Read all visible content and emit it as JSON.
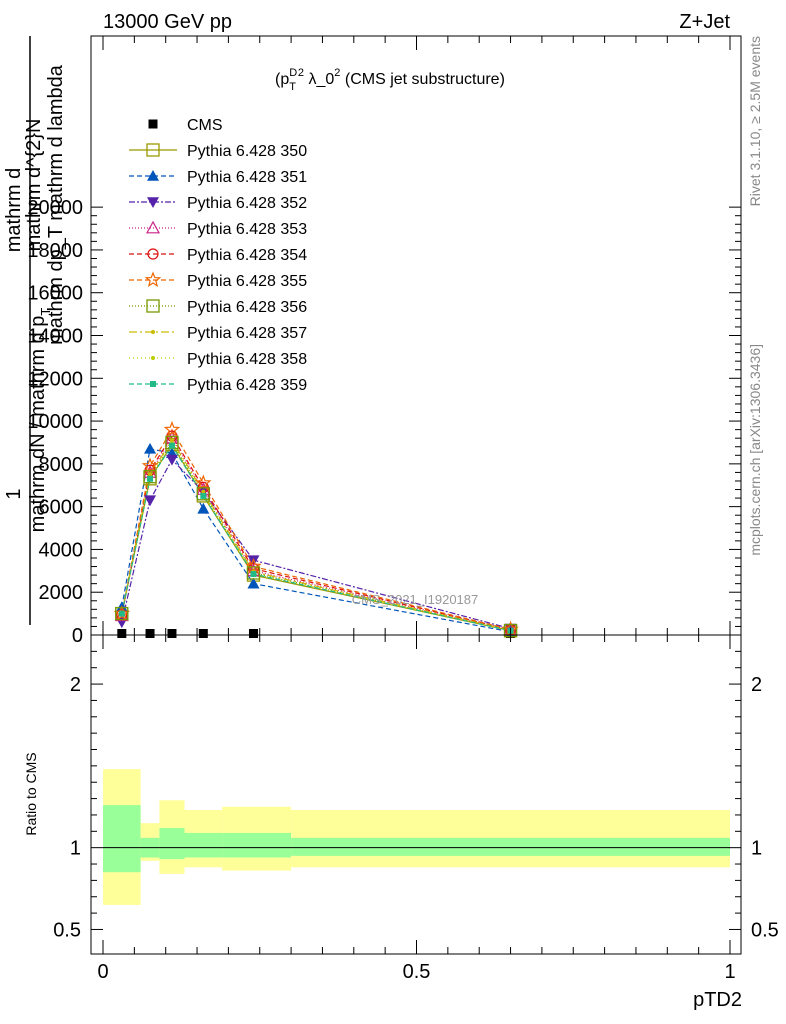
{
  "header": {
    "left": "13000 GeV pp",
    "right": "Z+Jet"
  },
  "side_labels": {
    "rivet": "Rivet 3.1.10, ≥ 2.5M events",
    "mcplots": "mcplots.cern.ch [arXiv:1306.3436]"
  },
  "watermark": "CMS_2021_I1920187",
  "chart_data": [
    {
      "type": "line",
      "title_main": "(p",
      "title_sup1": "D",
      "title_sub1": "T",
      "title_sup2": "2",
      "title_rest": " λ_0",
      "title_sup3": "2",
      "title_tail": " (CMS jet substructure)",
      "ylabel": {
        "line1": "1",
        "line2": "mathrm dN / mathrm d p",
        "line2_sub": "T",
        "line3": "mathrm d",
        "line4": "mathrm d^{2}N",
        "line5": "mathrm dp_T mathrm d lambda"
      },
      "ylim": [
        0,
        28000
      ],
      "yticks": [
        0,
        2000,
        4000,
        6000,
        8000,
        10000,
        12000,
        14000,
        16000,
        18000,
        20000
      ],
      "ytick_labels": [
        "0",
        "2000",
        "4000",
        "6000",
        "8000",
        "10000",
        "12000",
        "14000",
        "16000",
        "18000",
        "20000"
      ],
      "xlim": [
        0,
        1
      ],
      "x": [
        0.03,
        0.075,
        0.11,
        0.16,
        0.24,
        0.65
      ],
      "series": [
        {
          "name": "CMS",
          "color": "#000000",
          "marker": "square-filled",
          "dash": "none",
          "values": [
            0,
            0,
            0,
            0,
            0,
            0
          ]
        },
        {
          "name": "Pythia 6.428 350",
          "color": "#999900",
          "marker": "square-open",
          "dash": "solid",
          "values": [
            1000,
            7300,
            8900,
            6500,
            2800,
            200
          ]
        },
        {
          "name": "Pythia 6.428 351",
          "color": "#0055bb",
          "marker": "triangle-up",
          "dash": "5,3",
          "values": [
            1300,
            8700,
            8500,
            5900,
            2400,
            150
          ]
        },
        {
          "name": "Pythia 6.428 352",
          "color": "#5522aa",
          "marker": "triangle-down",
          "dash": "6,2,2,2",
          "values": [
            600,
            6300,
            8200,
            6700,
            3500,
            300
          ]
        },
        {
          "name": "Pythia 6.428 353",
          "color": "#cc2288",
          "marker": "triangle-open",
          "dash": "1,2",
          "values": [
            900,
            7600,
            9200,
            6800,
            3000,
            250
          ]
        },
        {
          "name": "Pythia 6.428 354",
          "color": "#dd1111",
          "marker": "circle-open",
          "dash": "5,3",
          "values": [
            950,
            7700,
            9300,
            6900,
            3100,
            250
          ]
        },
        {
          "name": "Pythia 6.428 355",
          "color": "#ee6600",
          "marker": "star",
          "dash": "5,3",
          "values": [
            1000,
            7900,
            9600,
            7100,
            3200,
            260
          ]
        },
        {
          "name": "Pythia 6.428 356",
          "color": "#779900",
          "marker": "square-open",
          "dash": "1,2",
          "values": [
            1000,
            7400,
            9000,
            6600,
            2900,
            210
          ]
        },
        {
          "name": "Pythia 6.428 357",
          "color": "#ccbb00",
          "marker": "dot",
          "dash": "8,3,2,3",
          "values": [
            1000,
            7500,
            9100,
            6700,
            2950,
            220
          ]
        },
        {
          "name": "Pythia 6.428 358",
          "color": "#bbcc00",
          "marker": "dot",
          "dash": "1,3",
          "values": [
            1050,
            7350,
            8950,
            6550,
            2850,
            210
          ]
        },
        {
          "name": "Pythia 6.428 359",
          "color": "#22bb88",
          "marker": "square-filled-small",
          "dash": "5,3",
          "values": [
            1000,
            7300,
            8850,
            6500,
            2850,
            200
          ]
        }
      ]
    },
    {
      "type": "area",
      "ylabel": "Ratio to CMS",
      "xlabel": "pTD2",
      "xlim": [
        0,
        1
      ],
      "xticks": [
        0,
        0.5,
        1
      ],
      "xtick_labels": [
        "0",
        "0.5",
        "1"
      ],
      "ylim": [
        0.35,
        2.3
      ],
      "yticks": [
        0.5,
        1,
        2
      ],
      "ytick_labels": [
        "0.5",
        "1",
        "2"
      ],
      "bands": {
        "edges": [
          0.0,
          0.06,
          0.09,
          0.13,
          0.19,
          0.3,
          1.0
        ],
        "inner_lo": [
          0.85,
          0.94,
          0.93,
          0.94,
          0.94,
          0.95
        ],
        "inner_hi": [
          1.26,
          1.06,
          1.12,
          1.09,
          1.09,
          1.06
        ],
        "outer_lo": [
          0.65,
          0.92,
          0.84,
          0.88,
          0.86,
          0.88
        ],
        "outer_hi": [
          1.48,
          1.15,
          1.29,
          1.23,
          1.25,
          1.23
        ],
        "inner_color": "#99ff99",
        "outer_color": "#ffff99"
      }
    }
  ]
}
